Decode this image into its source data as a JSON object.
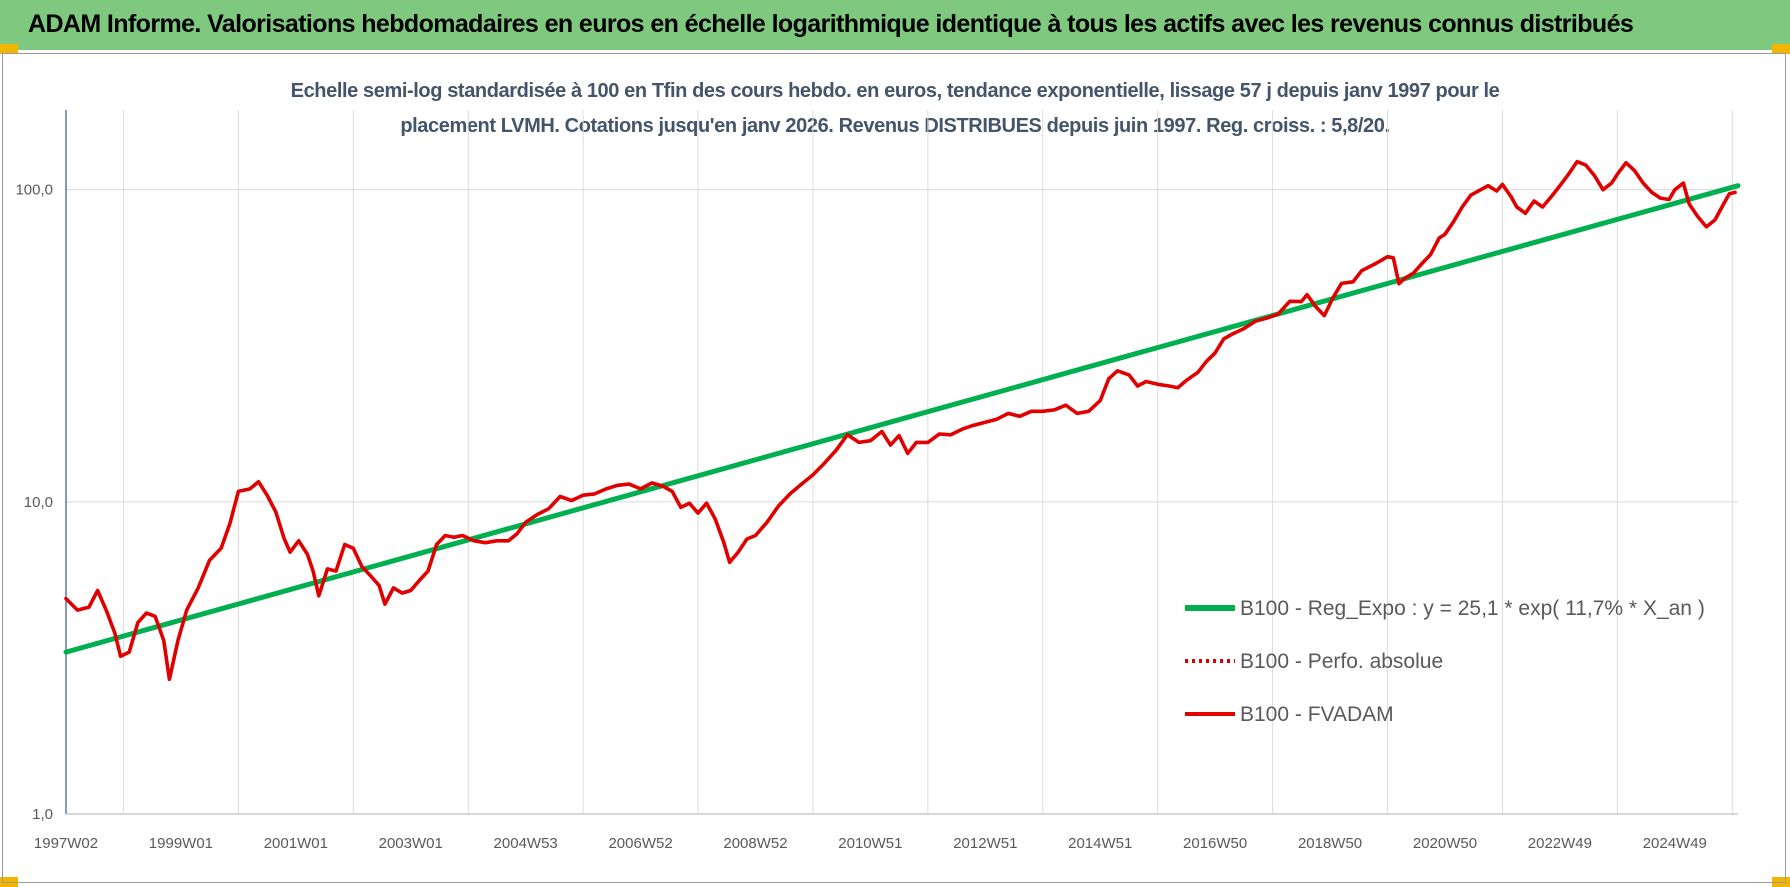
{
  "header": {
    "title": "ADAM Informe. Valorisations hebdomadaires en euros en échelle logarithmique identique à tous les actifs avec les revenus connus distribués"
  },
  "chart_data": {
    "type": "line",
    "title_lines": [
      "Echelle semi-log standardisée à 100 en Tfin des cours hebdo. en euros, tendance exponentielle, lissage 57 j depuis janv 1997 pour le",
      "placement LVMH.  Cotations jusqu'en janv 2026. Revenus DISTRIBUES depuis juin 1997. Reg. croiss. : 5,8/20."
    ],
    "y_scale": "log",
    "ylim": [
      1,
      180
    ],
    "y_ticks": [
      {
        "value": 1,
        "label": "1,0"
      },
      {
        "value": 10,
        "label": "10,0"
      },
      {
        "value": 100,
        "label": "100,0"
      }
    ],
    "xlim": [
      1997.0,
      2026.1
    ],
    "x_ticks": [
      {
        "value": 1997.0,
        "label": "1997W02"
      },
      {
        "value": 1999.0,
        "label": "1999W01"
      },
      {
        "value": 2001.0,
        "label": "2001W01"
      },
      {
        "value": 2003.0,
        "label": "2003W01"
      },
      {
        "value": 2005.0,
        "label": "2004W53"
      },
      {
        "value": 2007.0,
        "label": "2006W52"
      },
      {
        "value": 2009.0,
        "label": "2008W52"
      },
      {
        "value": 2011.0,
        "label": "2010W51"
      },
      {
        "value": 2013.0,
        "label": "2012W51"
      },
      {
        "value": 2015.0,
        "label": "2014W51"
      },
      {
        "value": 2017.0,
        "label": "2016W50"
      },
      {
        "value": 2019.0,
        "label": "2018W50"
      },
      {
        "value": 2021.0,
        "label": "2020W50"
      },
      {
        "value": 2023.0,
        "label": "2022W49"
      },
      {
        "value": 2025.0,
        "label": "2024W49"
      }
    ],
    "grid": "vertical",
    "legend_position": "bottom-right",
    "series": [
      {
        "name": "B100 - Reg_Expo : y = 25,1 * exp( 11,7% *  X_an )",
        "color": "#00b050",
        "style": "solid",
        "points": [
          [
            1997.0,
            3.3
          ],
          [
            2026.1,
            103
          ]
        ]
      },
      {
        "name": "B100 - Perfo. absolue",
        "color": "#e00000",
        "style": "dotted",
        "points": []
      },
      {
        "name": "B100 - FVADAM",
        "color": "#e00000",
        "style": "solid",
        "points": [
          [
            1997.0,
            4.9
          ],
          [
            1997.2,
            4.5
          ],
          [
            1997.4,
            4.6
          ],
          [
            1997.55,
            5.2
          ],
          [
            1997.7,
            4.5
          ],
          [
            1997.85,
            3.8
          ],
          [
            1997.95,
            3.2
          ],
          [
            1998.1,
            3.3
          ],
          [
            1998.25,
            4.1
          ],
          [
            1998.4,
            4.4
          ],
          [
            1998.55,
            4.3
          ],
          [
            1998.7,
            3.6
          ],
          [
            1998.8,
            2.7
          ],
          [
            1998.95,
            3.6
          ],
          [
            1999.1,
            4.5
          ],
          [
            1999.3,
            5.3
          ],
          [
            1999.5,
            6.5
          ],
          [
            1999.7,
            7.1
          ],
          [
            1999.85,
            8.5
          ],
          [
            2000.0,
            10.8
          ],
          [
            2000.2,
            11.0
          ],
          [
            2000.35,
            11.6
          ],
          [
            2000.5,
            10.5
          ],
          [
            2000.65,
            9.3
          ],
          [
            2000.8,
            7.6
          ],
          [
            2000.9,
            6.9
          ],
          [
            2001.05,
            7.5
          ],
          [
            2001.2,
            6.8
          ],
          [
            2001.3,
            6.0
          ],
          [
            2001.4,
            5.0
          ],
          [
            2001.55,
            6.1
          ],
          [
            2001.7,
            6.0
          ],
          [
            2001.85,
            7.3
          ],
          [
            2002.0,
            7.1
          ],
          [
            2002.15,
            6.2
          ],
          [
            2002.3,
            5.8
          ],
          [
            2002.45,
            5.4
          ],
          [
            2002.55,
            4.7
          ],
          [
            2002.7,
            5.3
          ],
          [
            2002.85,
            5.1
          ],
          [
            2003.0,
            5.2
          ],
          [
            2003.15,
            5.6
          ],
          [
            2003.3,
            6.0
          ],
          [
            2003.45,
            7.3
          ],
          [
            2003.6,
            7.8
          ],
          [
            2003.75,
            7.7
          ],
          [
            2003.9,
            7.8
          ],
          [
            2004.1,
            7.5
          ],
          [
            2004.3,
            7.4
          ],
          [
            2004.5,
            7.5
          ],
          [
            2004.7,
            7.5
          ],
          [
            2004.85,
            7.9
          ],
          [
            2005.0,
            8.6
          ],
          [
            2005.2,
            9.1
          ],
          [
            2005.4,
            9.5
          ],
          [
            2005.6,
            10.4
          ],
          [
            2005.8,
            10.1
          ],
          [
            2006.0,
            10.5
          ],
          [
            2006.2,
            10.6
          ],
          [
            2006.4,
            11.0
          ],
          [
            2006.6,
            11.3
          ],
          [
            2006.8,
            11.4
          ],
          [
            2007.0,
            11.0
          ],
          [
            2007.2,
            11.5
          ],
          [
            2007.4,
            11.2
          ],
          [
            2007.55,
            10.8
          ],
          [
            2007.7,
            9.6
          ],
          [
            2007.85,
            9.9
          ],
          [
            2008.0,
            9.2
          ],
          [
            2008.15,
            9.9
          ],
          [
            2008.3,
            8.8
          ],
          [
            2008.45,
            7.4
          ],
          [
            2008.55,
            6.4
          ],
          [
            2008.7,
            6.9
          ],
          [
            2008.85,
            7.6
          ],
          [
            2009.0,
            7.8
          ],
          [
            2009.2,
            8.6
          ],
          [
            2009.4,
            9.7
          ],
          [
            2009.6,
            10.6
          ],
          [
            2009.8,
            11.4
          ],
          [
            2010.0,
            12.2
          ],
          [
            2010.2,
            13.3
          ],
          [
            2010.4,
            14.6
          ],
          [
            2010.6,
            16.4
          ],
          [
            2010.8,
            15.5
          ],
          [
            2011.0,
            15.7
          ],
          [
            2011.2,
            16.8
          ],
          [
            2011.35,
            15.2
          ],
          [
            2011.5,
            16.3
          ],
          [
            2011.65,
            14.3
          ],
          [
            2011.8,
            15.5
          ],
          [
            2012.0,
            15.5
          ],
          [
            2012.2,
            16.5
          ],
          [
            2012.4,
            16.4
          ],
          [
            2012.6,
            17.1
          ],
          [
            2012.8,
            17.6
          ],
          [
            2013.0,
            18.0
          ],
          [
            2013.2,
            18.4
          ],
          [
            2013.4,
            19.2
          ],
          [
            2013.6,
            18.8
          ],
          [
            2013.8,
            19.5
          ],
          [
            2014.0,
            19.5
          ],
          [
            2014.2,
            19.7
          ],
          [
            2014.4,
            20.4
          ],
          [
            2014.6,
            19.2
          ],
          [
            2014.8,
            19.5
          ],
          [
            2015.0,
            21.1
          ],
          [
            2015.15,
            24.8
          ],
          [
            2015.3,
            26.3
          ],
          [
            2015.5,
            25.5
          ],
          [
            2015.65,
            23.5
          ],
          [
            2015.8,
            24.3
          ],
          [
            2016.0,
            23.8
          ],
          [
            2016.2,
            23.5
          ],
          [
            2016.35,
            23.2
          ],
          [
            2016.5,
            24.5
          ],
          [
            2016.7,
            26.0
          ],
          [
            2016.85,
            28.2
          ],
          [
            2017.0,
            30.0
          ],
          [
            2017.15,
            33.3
          ],
          [
            2017.3,
            34.5
          ],
          [
            2017.5,
            35.9
          ],
          [
            2017.7,
            37.9
          ],
          [
            2017.9,
            38.8
          ],
          [
            2018.1,
            40.0
          ],
          [
            2018.3,
            43.9
          ],
          [
            2018.5,
            43.8
          ],
          [
            2018.6,
            46.1
          ],
          [
            2018.75,
            42.2
          ],
          [
            2018.9,
            39.5
          ],
          [
            2019.05,
            45.0
          ],
          [
            2019.2,
            50.1
          ],
          [
            2019.4,
            50.7
          ],
          [
            2019.55,
            55.0
          ],
          [
            2019.75,
            57.4
          ],
          [
            2019.9,
            59.5
          ],
          [
            2020.0,
            61.0
          ],
          [
            2020.1,
            60.5
          ],
          [
            2020.2,
            50.0
          ],
          [
            2020.3,
            52.0
          ],
          [
            2020.45,
            54.0
          ],
          [
            2020.6,
            58.0
          ],
          [
            2020.75,
            62.0
          ],
          [
            2020.9,
            70.0
          ],
          [
            2021.0,
            72.0
          ],
          [
            2021.15,
            79.0
          ],
          [
            2021.3,
            88.0
          ],
          [
            2021.45,
            96.0
          ],
          [
            2021.6,
            99.5
          ],
          [
            2021.75,
            103.0
          ],
          [
            2021.9,
            99.0
          ],
          [
            2022.0,
            104.0
          ],
          [
            2022.15,
            95.0
          ],
          [
            2022.25,
            88.0
          ],
          [
            2022.4,
            84.0
          ],
          [
            2022.55,
            92.0
          ],
          [
            2022.7,
            88.0
          ],
          [
            2022.85,
            95.0
          ],
          [
            2023.0,
            103.0
          ],
          [
            2023.15,
            112.0
          ],
          [
            2023.3,
            123.0
          ],
          [
            2023.45,
            120.0
          ],
          [
            2023.6,
            111.0
          ],
          [
            2023.75,
            100.0
          ],
          [
            2023.9,
            105.0
          ],
          [
            2024.0,
            112.0
          ],
          [
            2024.15,
            122.0
          ],
          [
            2024.3,
            115.0
          ],
          [
            2024.45,
            105.0
          ],
          [
            2024.6,
            98.0
          ],
          [
            2024.75,
            94.0
          ],
          [
            2024.9,
            93.0
          ],
          [
            2025.0,
            100.0
          ],
          [
            2025.15,
            105.0
          ],
          [
            2025.25,
            90.0
          ],
          [
            2025.4,
            82.0
          ],
          [
            2025.55,
            76.0
          ],
          [
            2025.7,
            80.0
          ],
          [
            2025.85,
            90.0
          ],
          [
            2025.95,
            97.0
          ],
          [
            2026.05,
            98.0
          ]
        ]
      }
    ]
  }
}
